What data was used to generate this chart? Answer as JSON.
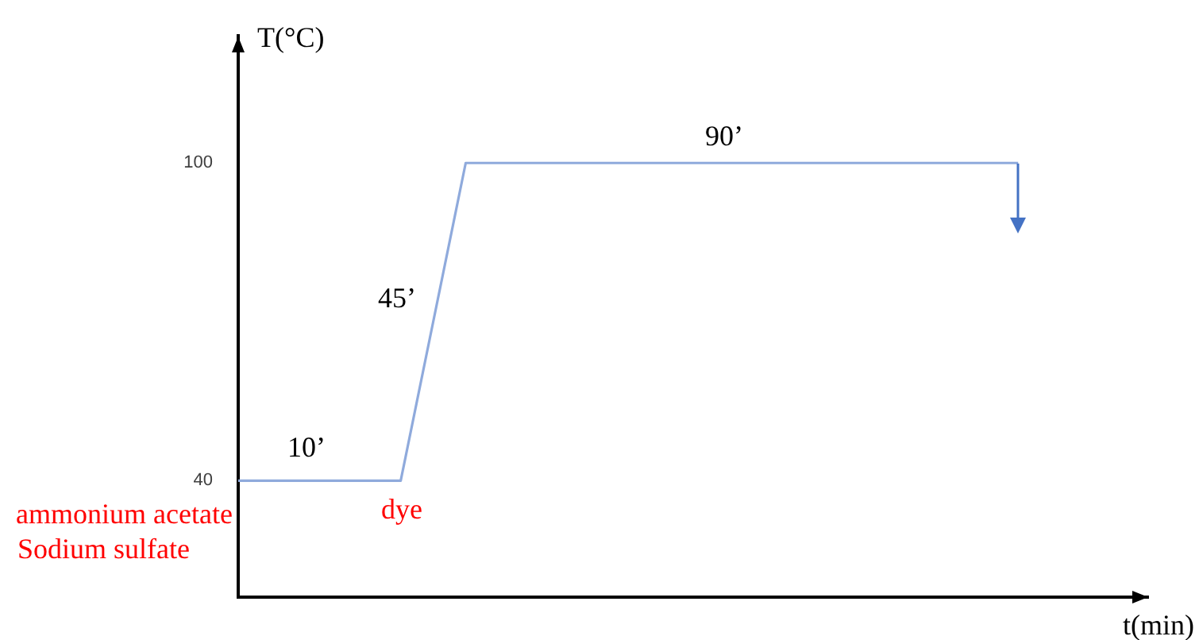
{
  "chart_data": {
    "type": "line",
    "xlabel": "t(min)",
    "ylabel": "T(°C)",
    "categories": [
      null,
      null,
      null,
      null,
      null,
      null,
      null,
      null,
      null,
      null,
      null,
      null,
      null,
      null,
      null,
      null,
      null,
      null,
      null,
      null,
      null,
      null,
      null,
      null,
      null,
      null,
      null,
      null,
      null
    ],
    "series": [
      {
        "color": "#8faadc",
        "values": [
          40,
          40,
          40,
          40,
          40,
          40,
          70,
          100,
          100,
          100,
          100,
          100,
          100,
          100,
          100,
          100,
          100,
          100,
          100,
          100,
          100,
          100,
          100,
          100,
          100,
          null,
          null,
          null,
          null
        ]
      }
    ],
    "ylim": [
      18,
      124
    ],
    "yticks": [
      40,
      100
    ],
    "tick_labels": "y",
    "marker": "none",
    "line_style": "solid",
    "annotations": [
      "10’",
      "45’",
      "90’",
      "dye",
      "ammonium acetate",
      "Sodium sulfate"
    ]
  }
}
